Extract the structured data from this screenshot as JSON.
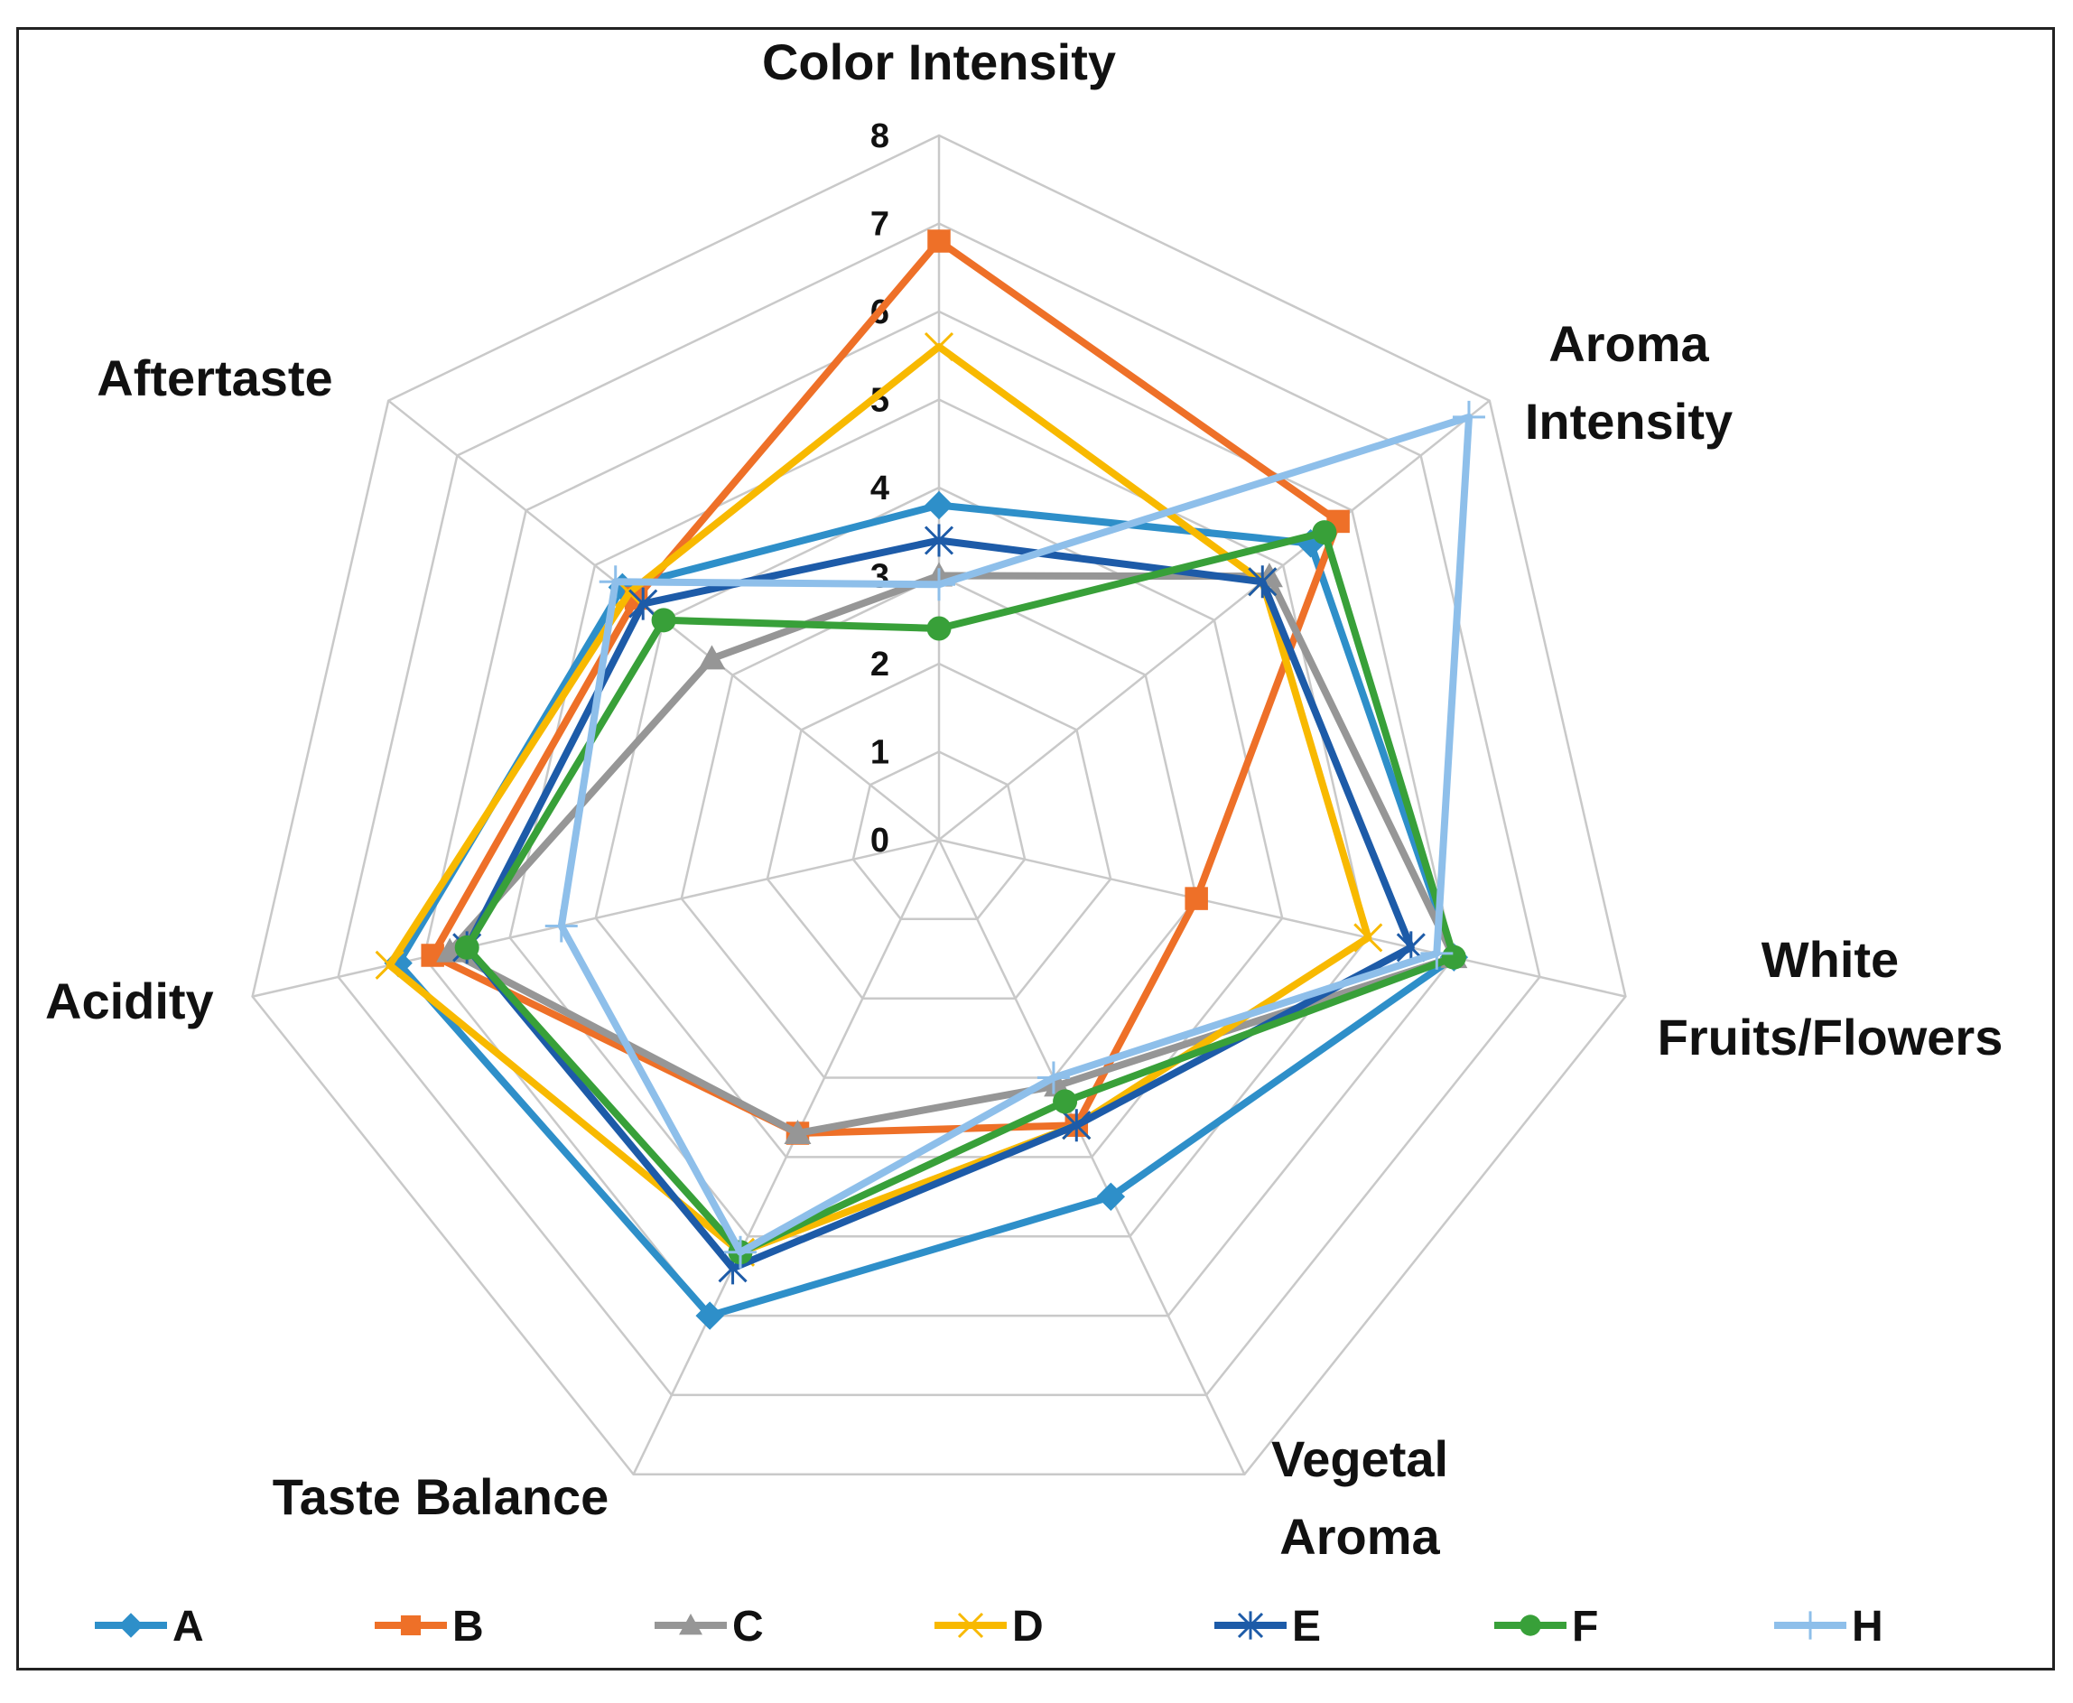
{
  "chart_data": {
    "type": "radar",
    "axes": [
      "Color Intensity",
      "Aroma Intensity",
      "White Fruits/Flowers",
      "Vegetal Aroma",
      "Taste Balance",
      "Acidity",
      "Aftertaste"
    ],
    "axis_label_lines": [
      [
        "Color Intensity"
      ],
      [
        "Aroma",
        "Intensity"
      ],
      [
        "White",
        "Fruits/Flowers"
      ],
      [
        "Vegetal",
        "Aroma"
      ],
      [
        "Taste Balance"
      ],
      [
        "Acidity"
      ],
      [
        "Aftertaste"
      ]
    ],
    "rlim": [
      0,
      8
    ],
    "ticks": [
      "0",
      "1",
      "2",
      "3",
      "4",
      "5",
      "6",
      "7",
      "8"
    ],
    "legend_position": "bottom",
    "series": [
      {
        "name": "A",
        "color": "#2E8FC9",
        "marker": "diamond",
        "values": [
          3.8,
          5.4,
          6.0,
          4.5,
          6.0,
          6.3,
          4.6
        ]
      },
      {
        "name": "B",
        "color": "#EE7028",
        "marker": "square",
        "values": [
          6.8,
          5.8,
          3.0,
          3.6,
          3.7,
          5.9,
          4.4
        ]
      },
      {
        "name": "C",
        "color": "#969696",
        "marker": "triangle",
        "values": [
          3.0,
          4.8,
          6.0,
          3.1,
          3.7,
          5.7,
          3.3
        ]
      },
      {
        "name": "D",
        "color": "#F8B900",
        "marker": "x",
        "values": [
          5.6,
          4.7,
          5.0,
          3.6,
          5.2,
          6.4,
          4.5
        ]
      },
      {
        "name": "E",
        "color": "#1D5BA8",
        "marker": "star",
        "values": [
          3.4,
          4.7,
          5.5,
          3.6,
          5.4,
          5.5,
          4.3
        ]
      },
      {
        "name": "F",
        "color": "#38A039",
        "marker": "circle",
        "values": [
          2.4,
          5.6,
          6.0,
          3.3,
          5.2,
          5.5,
          4.0
        ]
      },
      {
        "name": "H",
        "color": "#8EBFEA",
        "marker": "plus",
        "values": [
          2.9,
          7.7,
          5.8,
          3.0,
          5.2,
          4.4,
          4.7
        ]
      }
    ]
  }
}
